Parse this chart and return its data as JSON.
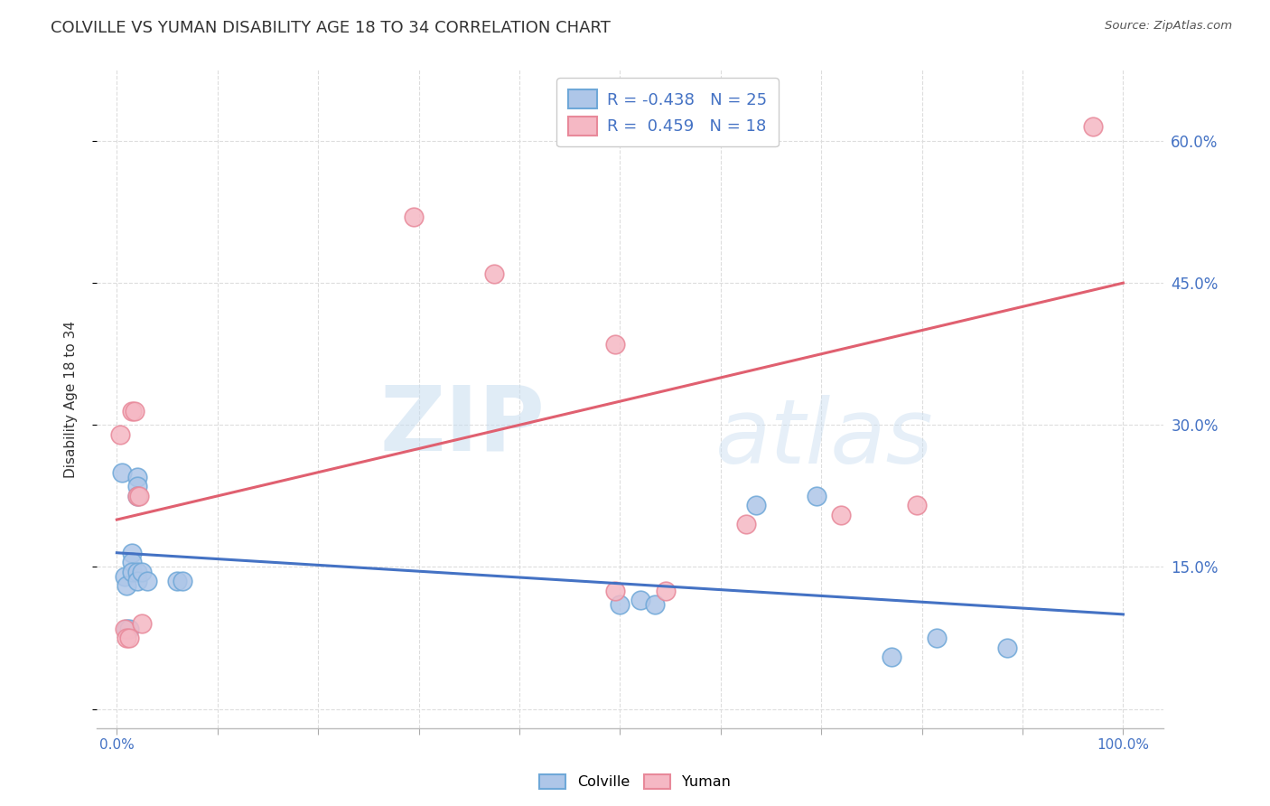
{
  "title": "COLVILLE VS YUMAN DISABILITY AGE 18 TO 34 CORRELATION CHART",
  "source": "Source: ZipAtlas.com",
  "ylabel": "Disability Age 18 to 34",
  "colville_R": -0.438,
  "colville_N": 25,
  "yuman_R": 0.459,
  "yuman_N": 18,
  "colville_fill": "#aec6e8",
  "yuman_fill": "#f5b8c4",
  "colville_edge": "#6fa8d8",
  "yuman_edge": "#e8899a",
  "colville_line_color": "#4472C4",
  "yuman_line_color": "#E06070",
  "watermark_zip": "ZIP",
  "watermark_atlas": "atlas",
  "colville_points": [
    [
      0.005,
      0.25
    ],
    [
      0.008,
      0.14
    ],
    [
      0.01,
      0.13
    ],
    [
      0.01,
      0.085
    ],
    [
      0.012,
      0.085
    ],
    [
      0.015,
      0.165
    ],
    [
      0.015,
      0.155
    ],
    [
      0.015,
      0.145
    ],
    [
      0.02,
      0.245
    ],
    [
      0.02,
      0.235
    ],
    [
      0.02,
      0.225
    ],
    [
      0.02,
      0.145
    ],
    [
      0.02,
      0.135
    ],
    [
      0.025,
      0.145
    ],
    [
      0.03,
      0.135
    ],
    [
      0.06,
      0.135
    ],
    [
      0.065,
      0.135
    ],
    [
      0.5,
      0.11
    ],
    [
      0.52,
      0.115
    ],
    [
      0.535,
      0.11
    ],
    [
      0.635,
      0.215
    ],
    [
      0.695,
      0.225
    ],
    [
      0.77,
      0.055
    ],
    [
      0.815,
      0.075
    ],
    [
      0.885,
      0.065
    ]
  ],
  "yuman_points": [
    [
      0.003,
      0.29
    ],
    [
      0.008,
      0.085
    ],
    [
      0.01,
      0.075
    ],
    [
      0.012,
      0.075
    ],
    [
      0.015,
      0.315
    ],
    [
      0.018,
      0.315
    ],
    [
      0.02,
      0.225
    ],
    [
      0.022,
      0.225
    ],
    [
      0.025,
      0.09
    ],
    [
      0.295,
      0.52
    ],
    [
      0.375,
      0.46
    ],
    [
      0.495,
      0.125
    ],
    [
      0.545,
      0.125
    ],
    [
      0.625,
      0.195
    ],
    [
      0.72,
      0.205
    ],
    [
      0.795,
      0.215
    ],
    [
      0.97,
      0.615
    ],
    [
      0.495,
      0.385
    ]
  ],
  "colville_trendline": [
    0.0,
    1.0,
    0.165,
    0.1
  ],
  "yuman_trendline": [
    0.0,
    1.0,
    0.2,
    0.45
  ],
  "xlim": [
    -0.02,
    1.04
  ],
  "ylim": [
    -0.02,
    0.675
  ],
  "yticks": [
    0.0,
    0.15,
    0.3,
    0.45,
    0.6
  ],
  "xticks_major": [
    0.0,
    0.1,
    0.2,
    0.3,
    0.4,
    0.5,
    0.6,
    0.7,
    0.8,
    0.9,
    1.0
  ],
  "xticks_labeled": [
    0.0,
    1.0
  ],
  "grid_color": "#dddddd",
  "bg_color": "#ffffff",
  "title_fontsize": 13,
  "axis_label_color": "#4472C4",
  "text_color": "#333333"
}
